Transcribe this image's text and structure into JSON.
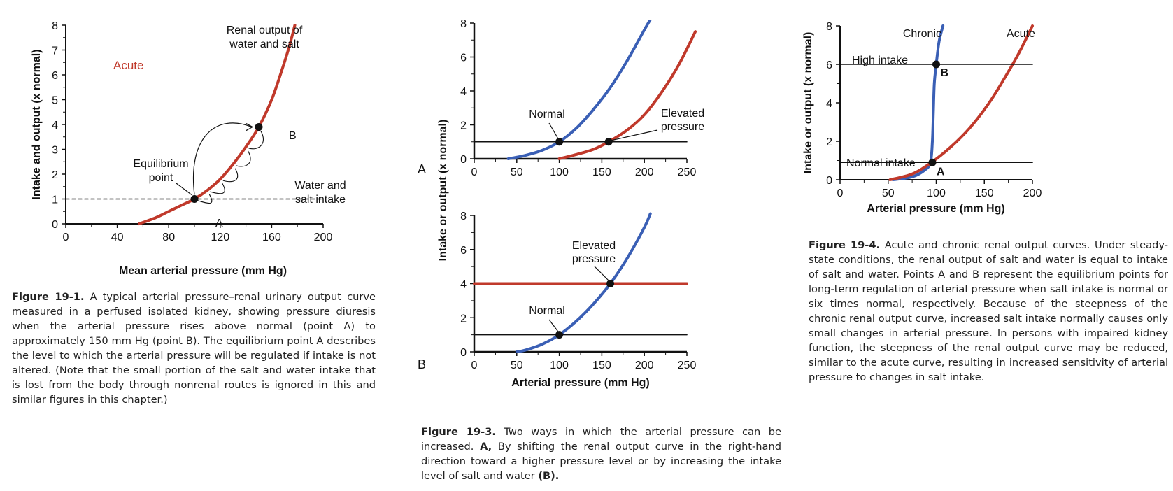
{
  "colors": {
    "red": "#c0392b",
    "blue": "#3a5fb5",
    "black": "#111111"
  },
  "figure1": {
    "caption_number": "Figure 19-1.",
    "caption_text": "A typical arterial pressure–renal urinary output curve measured in a perfused isolated kidney, showing pressure diuresis when the arterial pressure rises above normal (point A) to approximately 150 mm Hg (point B). The equilibrium point A describes the level to which the arterial pressure will be regulated if intake is not altered. (Note that the small portion of the salt and water intake that is lost from the body through nonrenal routes is ignored in this and similar figures in this chapter.)"
  },
  "figure3": {
    "caption_number": "Figure 19-3.",
    "caption_text": "Two ways in which the arterial pressure can be increased.",
    "caption_a_label": "A,",
    "caption_a_text": "By shifting the renal output curve in the right-hand direction toward a higher pressure level or by increasing the intake level of salt and water",
    "caption_b_label": "(B)."
  },
  "figure4": {
    "caption_number": "Figure 19-4.",
    "caption_text": "Acute and chronic renal output curves. Under steady-state conditions, the renal output of salt and water is equal to intake of salt and water. Points A and B represent the equilibrium points for long-term regulation of arterial pressure when salt intake is normal or six times normal, respectively. Because of the steepness of the chronic renal output curve, increased salt intake normally causes only small changes in arterial pressure. In persons with impaired kidney function, the steepness of the renal output curve may be reduced, similar to the acute curve, resulting in increased sensitivity of arterial pressure to changes in salt intake."
  },
  "chart_data": [
    {
      "id": "fig19-1",
      "type": "line",
      "xlabel": "Mean arterial pressure (mm Hg)",
      "ylabel": "Intake and output (x normal)",
      "xlim": [
        0,
        200
      ],
      "ylim": [
        0,
        8
      ],
      "xticks": [
        0,
        40,
        80,
        120,
        160,
        200
      ],
      "yticks": [
        0,
        1,
        2,
        3,
        4,
        5,
        6,
        7,
        8
      ],
      "series": [
        {
          "name": "Renal output of water and salt",
          "color": "red",
          "x": [
            57,
            70,
            80,
            90,
            100,
            110,
            120,
            130,
            140,
            150,
            160,
            168,
            174,
            178
          ],
          "y": [
            0,
            0.25,
            0.5,
            0.75,
            1.0,
            1.35,
            1.8,
            2.4,
            3.1,
            3.9,
            5.0,
            6.2,
            7.2,
            8.0
          ]
        },
        {
          "name": "Water and salt intake",
          "color": "black",
          "dashed": true,
          "x": [
            0,
            200
          ],
          "y": [
            1,
            1
          ]
        }
      ],
      "points": [
        {
          "label": "A",
          "x": 100,
          "y": 1
        },
        {
          "label": "B",
          "x": 150,
          "y": 3.9
        }
      ],
      "annotations": {
        "acute": "Acute",
        "renal_line1": "Renal output of",
        "renal_line2": "water and salt",
        "eq_line1": "Equilibrium",
        "eq_line2": "point",
        "intake_line1": "Water and",
        "intake_line2": "salt intake"
      }
    },
    {
      "id": "fig19-3A",
      "type": "line",
      "panel_label": "A",
      "xlim": [
        0,
        250
      ],
      "ylim": [
        0,
        8
      ],
      "xticks": [
        0,
        50,
        100,
        150,
        200,
        250
      ],
      "yticks": [
        0,
        2,
        4,
        6,
        8
      ],
      "series": [
        {
          "name": "Normal",
          "color": "blue",
          "x": [
            40,
            60,
            80,
            100,
            120,
            140,
            160,
            180,
            200,
            207
          ],
          "y": [
            0,
            0.2,
            0.5,
            1.0,
            1.8,
            2.9,
            4.2,
            5.8,
            7.6,
            8.2
          ]
        },
        {
          "name": "Elevated pressure",
          "color": "red",
          "x": [
            100,
            120,
            140,
            158,
            180,
            200,
            220,
            240,
            260
          ],
          "y": [
            0,
            0.25,
            0.55,
            1.0,
            1.7,
            2.6,
            3.9,
            5.5,
            7.5
          ]
        },
        {
          "color": "black",
          "x": [
            0,
            250
          ],
          "y": [
            1,
            1
          ]
        }
      ],
      "points": [
        {
          "x": 100,
          "y": 1
        },
        {
          "x": 158,
          "y": 1
        }
      ],
      "annotations": {
        "normal": "Normal",
        "elev_line1": "Elevated",
        "elev_line2": "pressure"
      }
    },
    {
      "id": "fig19-3B",
      "type": "line",
      "panel_label": "B",
      "xlabel": "Arterial pressure (mm Hg)",
      "ylabel": "Intake or output (x normal)",
      "xlim": [
        0,
        250
      ],
      "ylim": [
        0,
        8
      ],
      "xticks": [
        0,
        50,
        100,
        150,
        200,
        250
      ],
      "yticks": [
        0,
        2,
        4,
        6,
        8
      ],
      "series": [
        {
          "color": "blue",
          "x": [
            50,
            60,
            80,
            100,
            120,
            140,
            160,
            180,
            200,
            207
          ],
          "y": [
            0,
            0.1,
            0.45,
            1.0,
            1.8,
            2.8,
            4.0,
            5.5,
            7.3,
            8.1
          ]
        },
        {
          "color": "red",
          "x": [
            0,
            250
          ],
          "y": [
            4,
            4
          ]
        },
        {
          "color": "black",
          "x": [
            0,
            250
          ],
          "y": [
            1,
            1
          ]
        }
      ],
      "points": [
        {
          "x": 100,
          "y": 1
        },
        {
          "x": 160,
          "y": 4
        }
      ],
      "annotations": {
        "normal": "Normal",
        "elev_line1": "Elevated",
        "elev_line2": "pressure"
      }
    },
    {
      "id": "fig19-4",
      "type": "line",
      "xlabel": "Arterial pressure (mm Hg)",
      "ylabel": "Intake or output (x normal)",
      "xlim": [
        0,
        200
      ],
      "ylim": [
        0,
        8
      ],
      "xticks": [
        0,
        50,
        100,
        150,
        200
      ],
      "yticks": [
        0,
        2,
        4,
        6,
        8
      ],
      "series": [
        {
          "name": "Chronic",
          "color": "blue",
          "x": [
            55,
            75,
            88,
            94,
            96,
            97,
            98,
            100,
            103,
            107
          ],
          "y": [
            0,
            0.15,
            0.5,
            0.9,
            2.0,
            3.5,
            5.0,
            6.0,
            7.2,
            8.0
          ]
        },
        {
          "name": "Acute",
          "color": "red",
          "x": [
            52,
            75,
            95,
            115,
            135,
            155,
            170,
            185,
            200
          ],
          "y": [
            0,
            0.3,
            0.9,
            1.7,
            2.7,
            4.0,
            5.2,
            6.5,
            8.0
          ]
        },
        {
          "name": "High intake",
          "color": "black",
          "x": [
            0,
            200
          ],
          "y": [
            6,
            6
          ]
        },
        {
          "name": "Normal intake",
          "color": "black",
          "x": [
            0,
            200
          ],
          "y": [
            0.9,
            0.9
          ]
        }
      ],
      "points": [
        {
          "label": "A",
          "x": 96,
          "y": 0.9
        },
        {
          "label": "B",
          "x": 100,
          "y": 6
        }
      ]
    }
  ]
}
